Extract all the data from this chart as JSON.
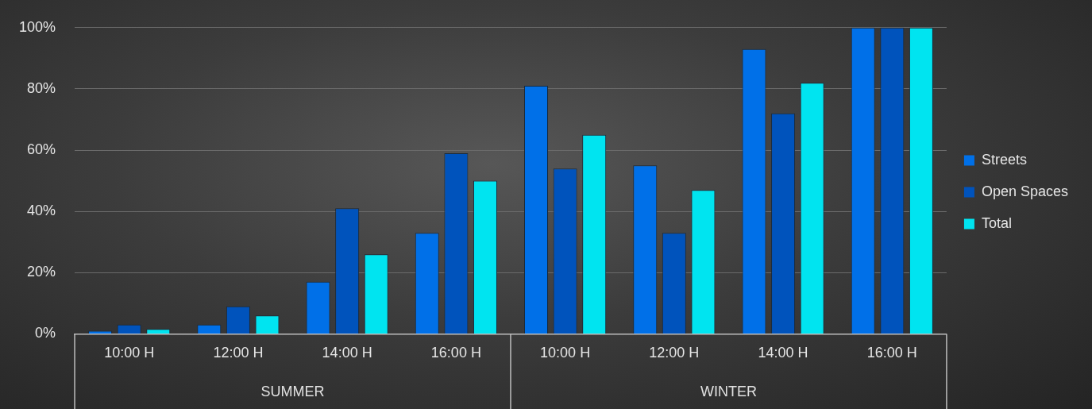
{
  "chart_data": {
    "type": "bar",
    "categories": [
      "10:00 H",
      "12:00 H",
      "14:00 H",
      "16:00 H",
      "10:00 H",
      "12:00 H",
      "14:00 H",
      "16:00 H"
    ],
    "series": [
      {
        "name": "Streets",
        "color": "#0070e8",
        "values": [
          1,
          3,
          17,
          33,
          81,
          55,
          93,
          100
        ]
      },
      {
        "name": "Open Spaces",
        "color": "#0053bc",
        "values": [
          3,
          9,
          41,
          59,
          54,
          33,
          72,
          100
        ]
      },
      {
        "name": "Total",
        "color": "#00e4f0",
        "values": [
          1.6,
          6,
          26,
          50,
          65,
          47,
          82,
          100
        ]
      }
    ],
    "ylim": [
      0,
      100
    ],
    "yticks": [
      {
        "value": 0,
        "label": "0%"
      },
      {
        "value": 20,
        "label": "20%"
      },
      {
        "value": 40,
        "label": "40%"
      },
      {
        "value": 60,
        "label": "60%"
      },
      {
        "value": 80,
        "label": "80%"
      },
      {
        "value": 100,
        "label": "100%"
      }
    ],
    "grid": "y",
    "legend": "right",
    "annotations": [
      "SUMMER",
      "WINTER"
    ]
  }
}
